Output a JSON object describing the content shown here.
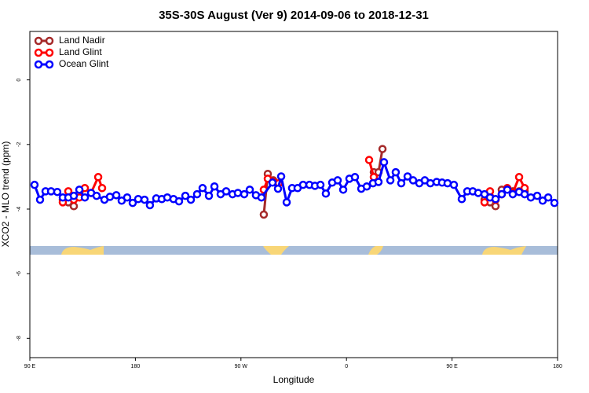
{
  "chart_data": {
    "type": "line",
    "title": "35S-30S August (Ver 9)   2014-09-06 to 2018-12-31",
    "x_label": "Longitude",
    "y_label": "XCO2 - MLO trend (ppm)",
    "xlim": [
      90,
      540
    ],
    "ylim": [
      -8.6,
      1.5
    ],
    "xticks": [
      {
        "value": 90,
        "label": "90 E"
      },
      180,
      {
        "value": 270,
        "label": "90 W"
      },
      {
        "value": 360,
        "label": "0"
      },
      {
        "value": 450,
        "label": "90 E"
      },
      {
        "value": 540,
        "label": "180"
      }
    ],
    "yticks": [
      0,
      -2,
      -4,
      -6,
      -8
    ],
    "legend": "top-left",
    "series": [
      {
        "name": "Land Nadir",
        "color": "#a52a2a",
        "x": [
          118.1,
          122.8,
          127.5,
          null,
          289.5,
          292.9,
          297.6,
          null,
          383.3,
          387.3,
          390.7,
          null,
          477.7,
          482.4,
          487.1,
          492.4,
          501.8,
          507.2,
          511.9
        ],
        "values": [
          -3.71,
          -3.79,
          -3.91,
          null,
          -4.17,
          -2.91,
          -3.11,
          null,
          -2.86,
          -2.86,
          -2.14,
          null,
          -3.71,
          -3.79,
          -3.91,
          -3.4,
          -3.45,
          -3.45,
          -3.45
        ]
      },
      {
        "name": "Land Glint",
        "color": "#ff0000",
        "x": [
          118.1,
          122.8,
          127.5,
          132.2,
          136.9,
          142.2,
          148.3,
          151.6,
          null,
          289.5,
          292.9,
          297.6,
          302.3,
          null,
          379.3,
          383.3,
          null,
          477.7,
          482.4,
          487.1,
          492.4,
          497.1,
          501.8,
          507.2,
          511.9
        ],
        "values": [
          -3.79,
          -3.45,
          -3.71,
          -3.64,
          -3.35,
          -3.5,
          -3.01,
          -3.35,
          null,
          -3.4,
          -3.06,
          -3.16,
          -3.2,
          null,
          -2.48,
          -3.01,
          null,
          -3.79,
          -3.45,
          -3.71,
          -3.54,
          -3.35,
          -3.5,
          -3.01,
          -3.35
        ]
      },
      {
        "name": "Ocean Glint",
        "color": "#0000ff",
        "x": [
          94.0,
          98.7,
          103.4,
          108.1,
          113.4,
          118.1,
          122.8,
          127.5,
          132.2,
          136.9,
          142.2,
          146.9,
          153.6,
          158.3,
          163.7,
          168.3,
          173.0,
          177.7,
          182.4,
          187.8,
          192.4,
          197.8,
          202.5,
          207.2,
          212.5,
          217.2,
          222.6,
          227.3,
          232.6,
          237.3,
          242.7,
          247.4,
          252.7,
          257.4,
          262.8,
          267.4,
          272.8,
          277.5,
          282.8,
          287.5,
          296.9,
          301.6,
          304.3,
          309.0,
          313.6,
          318.3,
          323.0,
          328.4,
          333.1,
          337.8,
          342.4,
          347.8,
          352.5,
          357.2,
          362.5,
          367.2,
          372.6,
          377.3,
          382.6,
          387.3,
          392.0,
          397.4,
          402.0,
          406.7,
          412.1,
          416.8,
          422.1,
          426.8,
          431.5,
          436.9,
          441.5,
          446.2,
          451.6,
          458.3,
          463.0,
          467.7,
          472.3,
          477.7,
          482.4,
          487.1,
          492.4,
          497.1,
          501.8,
          507.2,
          511.9,
          517.2,
          522.6,
          527.3,
          532.0,
          537.3
        ],
        "values": [
          -3.25,
          -3.71,
          -3.45,
          -3.45,
          -3.47,
          -3.64,
          -3.64,
          -3.59,
          -3.4,
          -3.64,
          -3.5,
          -3.59,
          -3.71,
          -3.62,
          -3.57,
          -3.74,
          -3.64,
          -3.81,
          -3.69,
          -3.71,
          -3.88,
          -3.67,
          -3.69,
          -3.64,
          -3.69,
          -3.76,
          -3.59,
          -3.71,
          -3.54,
          -3.35,
          -3.59,
          -3.3,
          -3.54,
          -3.45,
          -3.54,
          -3.5,
          -3.54,
          -3.4,
          -3.57,
          -3.64,
          -3.18,
          -3.37,
          -2.99,
          -3.79,
          -3.35,
          -3.35,
          -3.25,
          -3.25,
          -3.28,
          -3.25,
          -3.52,
          -3.18,
          -3.11,
          -3.4,
          -3.06,
          -3.01,
          -3.37,
          -3.3,
          -3.2,
          -3.16,
          -2.55,
          -3.11,
          -2.86,
          -3.2,
          -2.99,
          -3.11,
          -3.2,
          -3.11,
          -3.2,
          -3.16,
          -3.18,
          -3.2,
          -3.25,
          -3.69,
          -3.45,
          -3.45,
          -3.5,
          -3.54,
          -3.64,
          -3.69,
          -3.54,
          -3.4,
          -3.54,
          -3.47,
          -3.54,
          -3.64,
          -3.59,
          -3.74,
          -3.64,
          -3.81
        ]
      }
    ]
  }
}
